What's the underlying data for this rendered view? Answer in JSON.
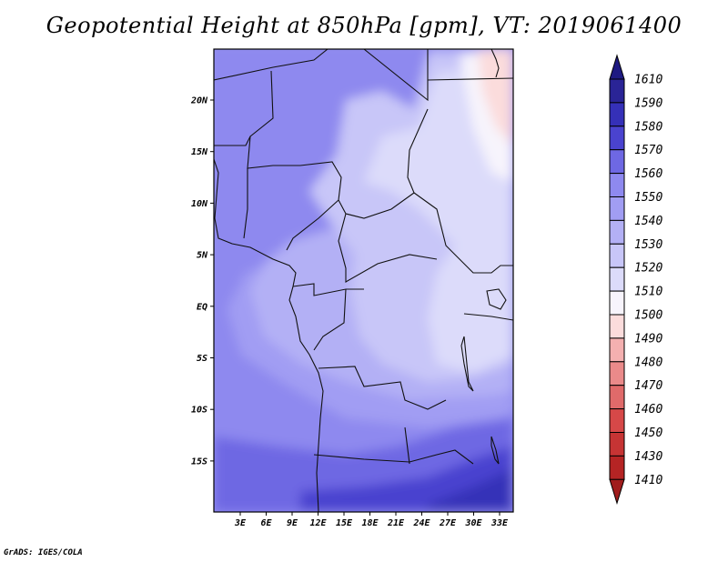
{
  "title": "Geopotential Height at 850hPa [gpm], VT: 2019061400",
  "footer": "GrADS: IGES/COLA",
  "map": {
    "lat_labels": [
      "20N",
      "15N",
      "10N",
      "5N",
      "EQ",
      "5S",
      "10S",
      "15S"
    ],
    "lon_labels": [
      "3E",
      "6E",
      "9E",
      "12E",
      "15E",
      "18E",
      "21E",
      "24E",
      "27E",
      "30E",
      "33E"
    ],
    "field_fills": [
      {
        "level": "1560",
        "color": "#8e89ef"
      },
      {
        "level": "1550",
        "color": "#a19df3"
      },
      {
        "level": "1540",
        "color": "#b3b0f5"
      },
      {
        "level": "1530",
        "color": "#c8c6f8"
      },
      {
        "level": "1520",
        "color": "#dcdbfa"
      },
      {
        "level": "1510",
        "color": "#f7f4fc"
      },
      {
        "level": "1500",
        "color": "#fbdcdc"
      },
      {
        "level": "1570",
        "color": "#6e68e3"
      },
      {
        "level": "1580",
        "color": "#4a43cf"
      },
      {
        "level": "1590",
        "color": "#3530b8"
      }
    ]
  },
  "colorbar": {
    "levels": [
      "1610",
      "1590",
      "1580",
      "1570",
      "1560",
      "1550",
      "1540",
      "1530",
      "1520",
      "1510",
      "1500",
      "1490",
      "1480",
      "1470",
      "1460",
      "1450",
      "1430",
      "1410"
    ],
    "colors": [
      "#2a2496",
      "#3530b8",
      "#4a43cf",
      "#6e68e3",
      "#8e89ef",
      "#a19df3",
      "#b3b0f5",
      "#c8c6f8",
      "#dcdbfa",
      "#f7f4fc",
      "#fbdcdc",
      "#f4b0b0",
      "#ea8a8a",
      "#e06a6a",
      "#d64848",
      "#c63434",
      "#b52424"
    ],
    "top_color": "#1e1a82",
    "bottom_color": "#a01c1c"
  }
}
